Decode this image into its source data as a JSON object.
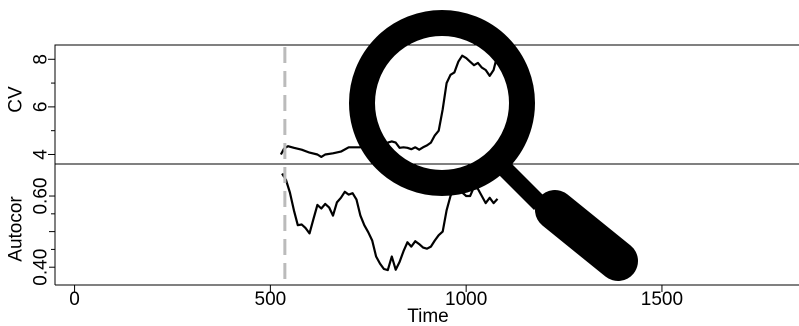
{
  "chart_data": [
    {
      "type": "line",
      "panel": "top",
      "ylabel": "CV",
      "xlim": [
        -50,
        1850
      ],
      "ylim": [
        3.6,
        8.6
      ],
      "yticks": [
        4,
        6,
        8
      ],
      "yticklabels": [
        "4",
        "6",
        "8"
      ],
      "grid": false,
      "series": [
        {
          "x": [
            527,
            535,
            545,
            560,
            580,
            600,
            620,
            630,
            640,
            660,
            680,
            700,
            720,
            740,
            760,
            770,
            780,
            790,
            800,
            810,
            820,
            830,
            840,
            850,
            860,
            870,
            880,
            890,
            900,
            910,
            920,
            930,
            940,
            950,
            960,
            970,
            980,
            990,
            1000,
            1010,
            1020,
            1030,
            1040,
            1050,
            1060,
            1070,
            1080
          ],
          "y": [
            4.0,
            4.25,
            4.35,
            4.28,
            4.2,
            4.08,
            4.0,
            3.9,
            4.0,
            4.05,
            4.12,
            4.3,
            4.3,
            4.3,
            4.3,
            4.4,
            4.15,
            4.1,
            4.5,
            4.55,
            4.5,
            4.28,
            4.3,
            4.28,
            4.22,
            4.3,
            4.2,
            4.3,
            4.38,
            4.5,
            4.8,
            5.0,
            5.9,
            7.0,
            7.35,
            7.45,
            7.9,
            8.15,
            8.05,
            7.9,
            7.75,
            7.85,
            7.65,
            7.55,
            7.3,
            7.55,
            8.2
          ]
        }
      ]
    },
    {
      "type": "line",
      "panel": "bottom",
      "ylabel": "Autocor",
      "xlabel": "Time",
      "xlim": [
        -50,
        1850
      ],
      "xticks": [
        0,
        500,
        1000,
        1500
      ],
      "xticklabels": [
        "0",
        "500",
        "1000",
        "1500"
      ],
      "ylim": [
        0.35,
        0.69
      ],
      "yticks": [
        0.4,
        0.5,
        0.6
      ],
      "yticklabels": [
        "0.40",
        "0.60"
      ],
      "grid": false,
      "vline_x": 537,
      "series": [
        {
          "x": [
            530,
            540,
            550,
            560,
            570,
            580,
            590,
            600,
            610,
            620,
            630,
            640,
            650,
            660,
            670,
            680,
            690,
            700,
            710,
            720,
            730,
            740,
            750,
            760,
            770,
            780,
            790,
            800,
            810,
            820,
            830,
            840,
            850,
            860,
            870,
            880,
            890,
            900,
            910,
            920,
            930,
            940,
            950,
            960,
            970,
            980,
            990,
            1000,
            1010,
            1020,
            1030,
            1040,
            1050,
            1060,
            1070,
            1080
          ],
          "y": [
            0.663,
            0.645,
            0.61,
            0.56,
            0.518,
            0.52,
            0.51,
            0.495,
            0.535,
            0.575,
            0.565,
            0.578,
            0.568,
            0.545,
            0.582,
            0.595,
            0.612,
            0.604,
            0.608,
            0.59,
            0.545,
            0.518,
            0.498,
            0.475,
            0.43,
            0.41,
            0.395,
            0.392,
            0.43,
            0.393,
            0.415,
            0.445,
            0.47,
            0.458,
            0.473,
            0.465,
            0.455,
            0.452,
            0.458,
            0.475,
            0.49,
            0.5,
            0.56,
            0.6,
            0.62,
            0.63,
            0.61,
            0.6,
            0.6,
            0.625,
            0.62,
            0.6,
            0.58,
            0.595,
            0.58,
            0.592
          ]
        }
      ]
    }
  ],
  "icons": {
    "magnifier": "magnifying-glass-icon"
  }
}
